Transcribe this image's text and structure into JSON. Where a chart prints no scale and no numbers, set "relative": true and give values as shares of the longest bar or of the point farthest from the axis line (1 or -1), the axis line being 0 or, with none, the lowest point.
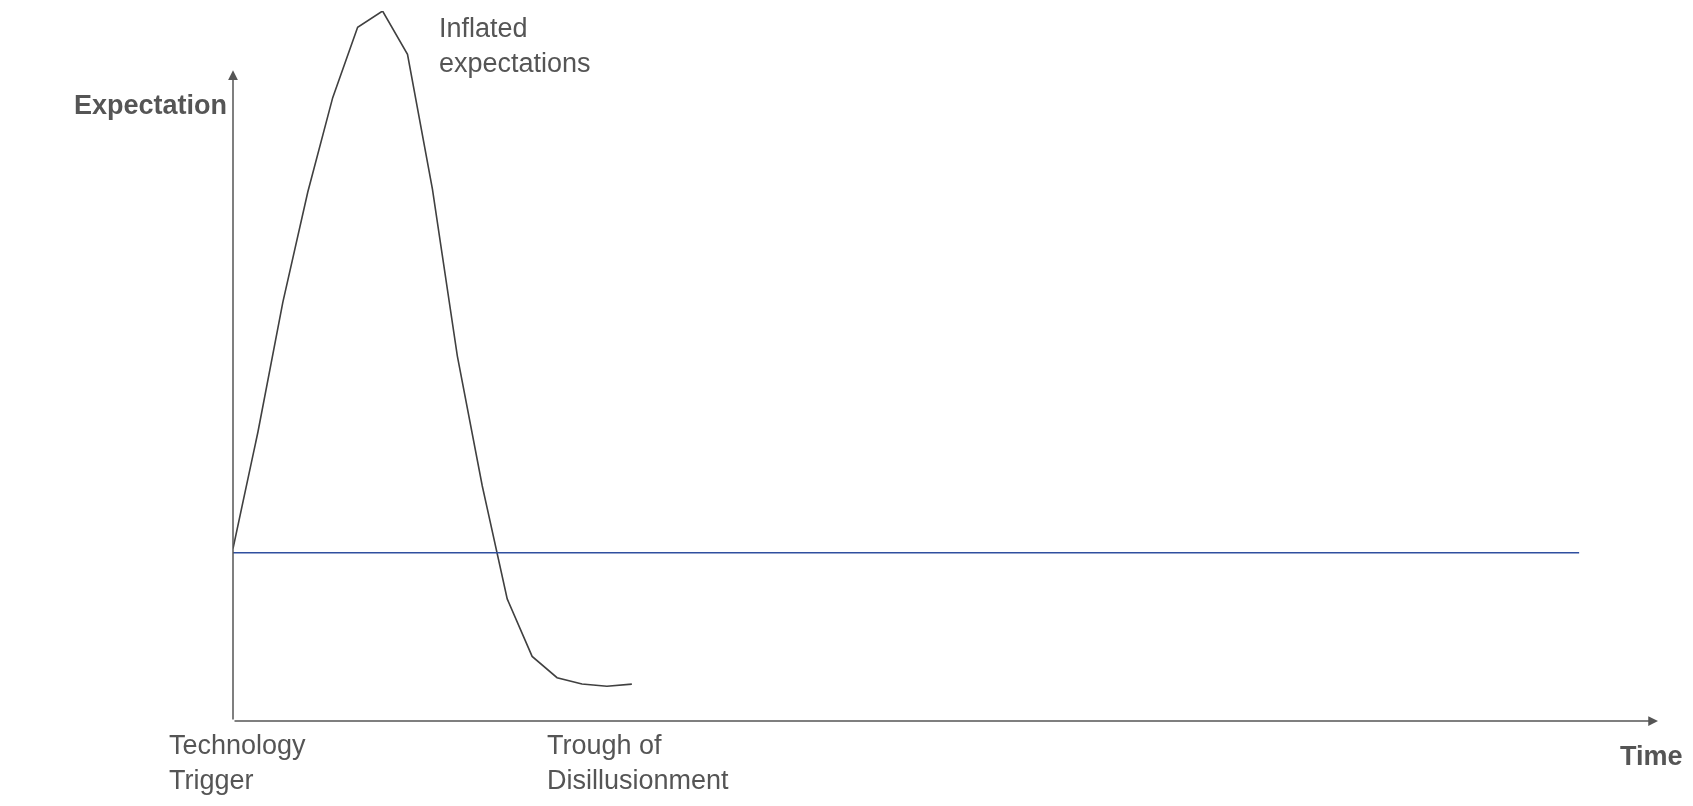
{
  "chart_data": {
    "type": "line",
    "relative": true,
    "xlabel": "Time",
    "ylabel": "Expectation",
    "categories": [
      null,
      null,
      null,
      null,
      null,
      null,
      null,
      null,
      null,
      null,
      null,
      null,
      null,
      null,
      null,
      null,
      null,
      null,
      null,
      null,
      null,
      null,
      null,
      null,
      null,
      null,
      null,
      null,
      null,
      null,
      null,
      null,
      null,
      null,
      null,
      null,
      null,
      null,
      null,
      null,
      null,
      null,
      null,
      null,
      null,
      null,
      null,
      null,
      null,
      null,
      null,
      null,
      null,
      null,
      null
    ],
    "series": [
      {
        "color": "#404040",
        "values": [
          0.243,
          0.407,
          0.59,
          0.745,
          0.878,
          0.977,
          1,
          0.939,
          0.749,
          0.514,
          0.331,
          0.172,
          0.091,
          0.061,
          0.052,
          0.049,
          0.052,
          null,
          null,
          null,
          null,
          null,
          null,
          null,
          null,
          null,
          null,
          null,
          null,
          null,
          null,
          null,
          null,
          null,
          null,
          null,
          null,
          null,
          null,
          null,
          null,
          null,
          null,
          null,
          null,
          null,
          null,
          null,
          null,
          null,
          null,
          null,
          null,
          null,
          null
        ]
      },
      {
        "color": "#2f4f9f",
        "values": [
          0.237,
          0.237,
          0.237,
          0.237,
          0.237,
          0.237,
          0.237,
          0.237,
          0.237,
          0.237,
          0.237,
          0.237,
          0.237,
          0.237,
          0.237,
          0.237,
          0.237,
          0.237,
          0.237,
          0.237,
          0.237,
          0.237,
          0.237,
          0.237,
          0.237,
          0.237,
          0.237,
          0.237,
          0.237,
          0.237,
          0.237,
          0.237,
          0.237,
          0.237,
          0.237,
          0.237,
          0.237,
          0.237,
          0.237,
          0.237,
          0.237,
          0.237,
          0.237,
          0.237,
          0.237,
          0.237,
          0.237,
          0.237,
          0.237,
          0.237,
          0.237,
          0.237,
          0.237,
          0.237,
          0.237
        ]
      }
    ],
    "annotations": [
      "Inflated\nexpectations",
      "Technology\nTrigger",
      "Trough of\nDisillusionment"
    ]
  }
}
